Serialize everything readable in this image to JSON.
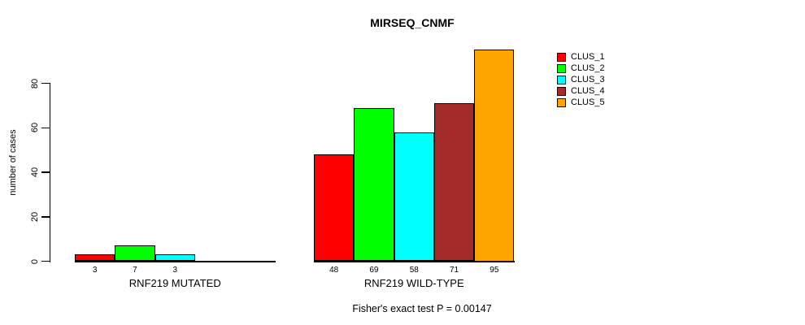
{
  "title": "MIRSEQ_CNMF",
  "ylabel": "number of cases",
  "footer": "Fisher's exact test P = 0.00147",
  "legend": {
    "items": [
      {
        "label": "CLUS_1",
        "color": "#FF0000"
      },
      {
        "label": "CLUS_2",
        "color": "#00FF00"
      },
      {
        "label": "CLUS_3",
        "color": "#00FFFF"
      },
      {
        "label": "CLUS_4",
        "color": "#A52A2A"
      },
      {
        "label": "CLUS_5",
        "color": "#FFA500"
      }
    ]
  },
  "chart_data": {
    "type": "bar",
    "title": "MIRSEQ_CNMF",
    "xlabel": "",
    "ylabel": "number of cases",
    "yticks": [
      0,
      20,
      40,
      60,
      80
    ],
    "ylim": [
      0,
      95
    ],
    "grid": false,
    "legend_position": "top-right",
    "series_names": [
      "CLUS_1",
      "CLUS_2",
      "CLUS_3",
      "CLUS_4",
      "CLUS_5"
    ],
    "series_colors": [
      "#FF0000",
      "#00FF00",
      "#00FFFF",
      "#A52A2A",
      "#FFA500"
    ],
    "groups": [
      {
        "label": "RNF219 MUTATED",
        "values": [
          3,
          7,
          3,
          0,
          0
        ],
        "bar_labels": [
          "3",
          "7",
          "3",
          "",
          ""
        ]
      },
      {
        "label": "RNF219 WILD-TYPE",
        "values": [
          48,
          69,
          58,
          71,
          95
        ],
        "bar_labels": [
          "48",
          "69",
          "58",
          "71",
          "95"
        ]
      }
    ],
    "annotation": "Fisher's exact test P = 0.00147"
  }
}
